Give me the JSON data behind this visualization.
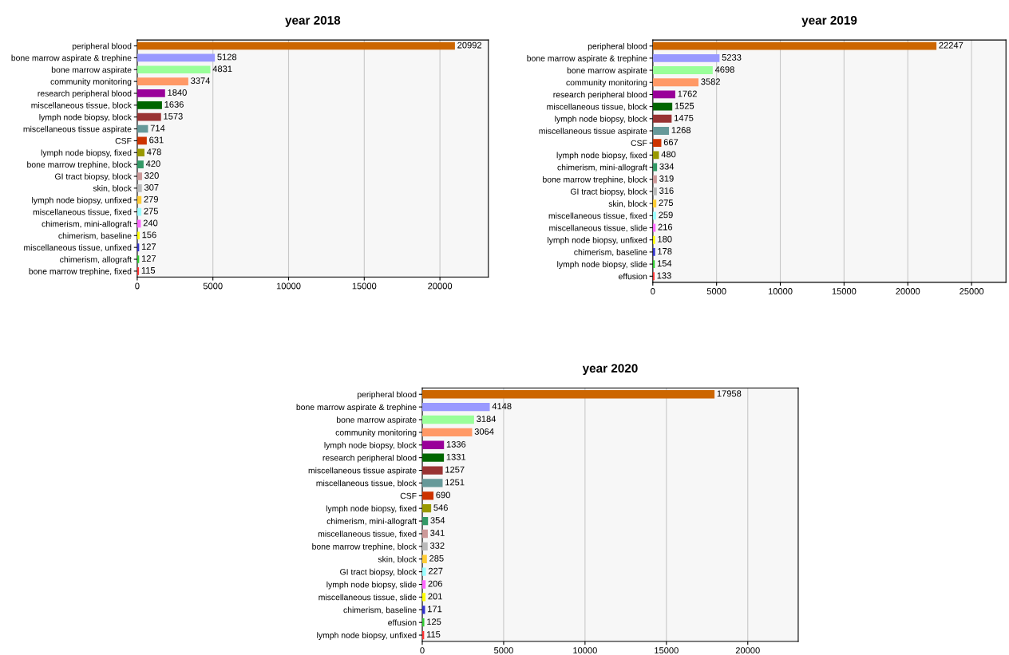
{
  "chart_data": [
    {
      "type": "bar",
      "orientation": "horizontal",
      "title": "year 2018",
      "data_labels": true,
      "grid": "x",
      "xlim": [
        0,
        23200
      ],
      "xticks": [
        0,
        5000,
        10000,
        15000,
        20000
      ],
      "categories": [
        "peripheral blood",
        "bone marrow aspirate & trephine",
        "bone marrow aspirate",
        "community monitoring",
        "research peripheral blood",
        "miscellaneous tissue, block",
        "lymph node biopsy, block",
        "miscellaneous tissue aspirate",
        "CSF",
        "lymph node biopsy, fixed",
        "bone marrow trephine, block",
        "GI tract biopsy, block",
        "skin, block",
        "lymph node biopsy, unfixed",
        "miscellaneous tissue, fixed",
        "chimerism, mini-allograft",
        "chimerism, baseline",
        "miscellaneous tissue, unfixed",
        "chimerism, allograft",
        "bone marrow trephine, fixed"
      ],
      "values": [
        20992,
        5128,
        4831,
        3374,
        1840,
        1636,
        1573,
        714,
        631,
        478,
        420,
        320,
        307,
        279,
        275,
        240,
        156,
        127,
        127,
        115
      ],
      "colors": [
        "#cc6600",
        "#9999ff",
        "#99ff99",
        "#ff9966",
        "#990099",
        "#006600",
        "#993333",
        "#669999",
        "#cc3300",
        "#999900",
        "#339966",
        "#cc9999",
        "#bbbbbb",
        "#ffcc33",
        "#99ffff",
        "#ff66ff",
        "#ffff00",
        "#3333cc",
        "#33cc33",
        "#ff3333"
      ]
    },
    {
      "type": "bar",
      "orientation": "horizontal",
      "title": "year 2019",
      "data_labels": true,
      "grid": "x",
      "xlim": [
        0,
        27700
      ],
      "xticks": [
        0,
        5000,
        10000,
        15000,
        20000,
        25000
      ],
      "categories": [
        "peripheral blood",
        "bone marrow aspirate & trephine",
        "bone marrow aspirate",
        "community monitoring",
        "research peripheral blood",
        "miscellaneous tissue, block",
        "lymph node biopsy, block",
        "miscellaneous tissue aspirate",
        "CSF",
        "lymph node biopsy, fixed",
        "chimerism, mini-allograft",
        "bone marrow trephine, block",
        "GI tract biopsy, block",
        "skin, block",
        "miscellaneous tissue, fixed",
        "miscellaneous tissue, slide",
        "lymph node biopsy, unfixed",
        "chimerism, baseline",
        "lymph node biopsy, slide",
        "effusion"
      ],
      "values": [
        22247,
        5233,
        4698,
        3582,
        1762,
        1525,
        1475,
        1268,
        667,
        480,
        334,
        319,
        316,
        275,
        259,
        216,
        180,
        178,
        154,
        133
      ],
      "colors": [
        "#cc6600",
        "#9999ff",
        "#99ff99",
        "#ff9966",
        "#990099",
        "#006600",
        "#993333",
        "#669999",
        "#cc3300",
        "#999900",
        "#339966",
        "#cc9999",
        "#bbbbbb",
        "#ffcc33",
        "#99ffff",
        "#ff66ff",
        "#ffff00",
        "#3333cc",
        "#33cc33",
        "#ff3333"
      ]
    },
    {
      "type": "bar",
      "orientation": "horizontal",
      "title": "year 2020",
      "data_labels": true,
      "grid": "x",
      "xlim": [
        0,
        23100
      ],
      "xticks": [
        0,
        5000,
        10000,
        15000,
        20000
      ],
      "categories": [
        "peripheral blood",
        "bone marrow aspirate & trephine",
        "bone marrow aspirate",
        "community monitoring",
        "lymph node biopsy, block",
        "research peripheral blood",
        "miscellaneous tissue aspirate",
        "miscellaneous tissue, block",
        "CSF",
        "lymph node biopsy, fixed",
        "chimerism, mini-allograft",
        "miscellaneous tissue, fixed",
        "bone marrow trephine, block",
        "skin, block",
        "GI tract biopsy, block",
        "lymph node biopsy, slide",
        "miscellaneous tissue, slide",
        "chimerism, baseline",
        "effusion",
        "lymph node biopsy, unfixed"
      ],
      "values": [
        17958,
        4148,
        3184,
        3064,
        1336,
        1331,
        1257,
        1251,
        690,
        546,
        354,
        341,
        332,
        285,
        227,
        206,
        201,
        171,
        125,
        115
      ],
      "colors": [
        "#cc6600",
        "#9999ff",
        "#99ff99",
        "#ff9966",
        "#990099",
        "#006600",
        "#993333",
        "#669999",
        "#cc3300",
        "#999900",
        "#339966",
        "#cc9999",
        "#bbbbbb",
        "#ffcc33",
        "#99ffff",
        "#ff66ff",
        "#ffff00",
        "#3333cc",
        "#33cc33",
        "#ff3333"
      ]
    }
  ]
}
